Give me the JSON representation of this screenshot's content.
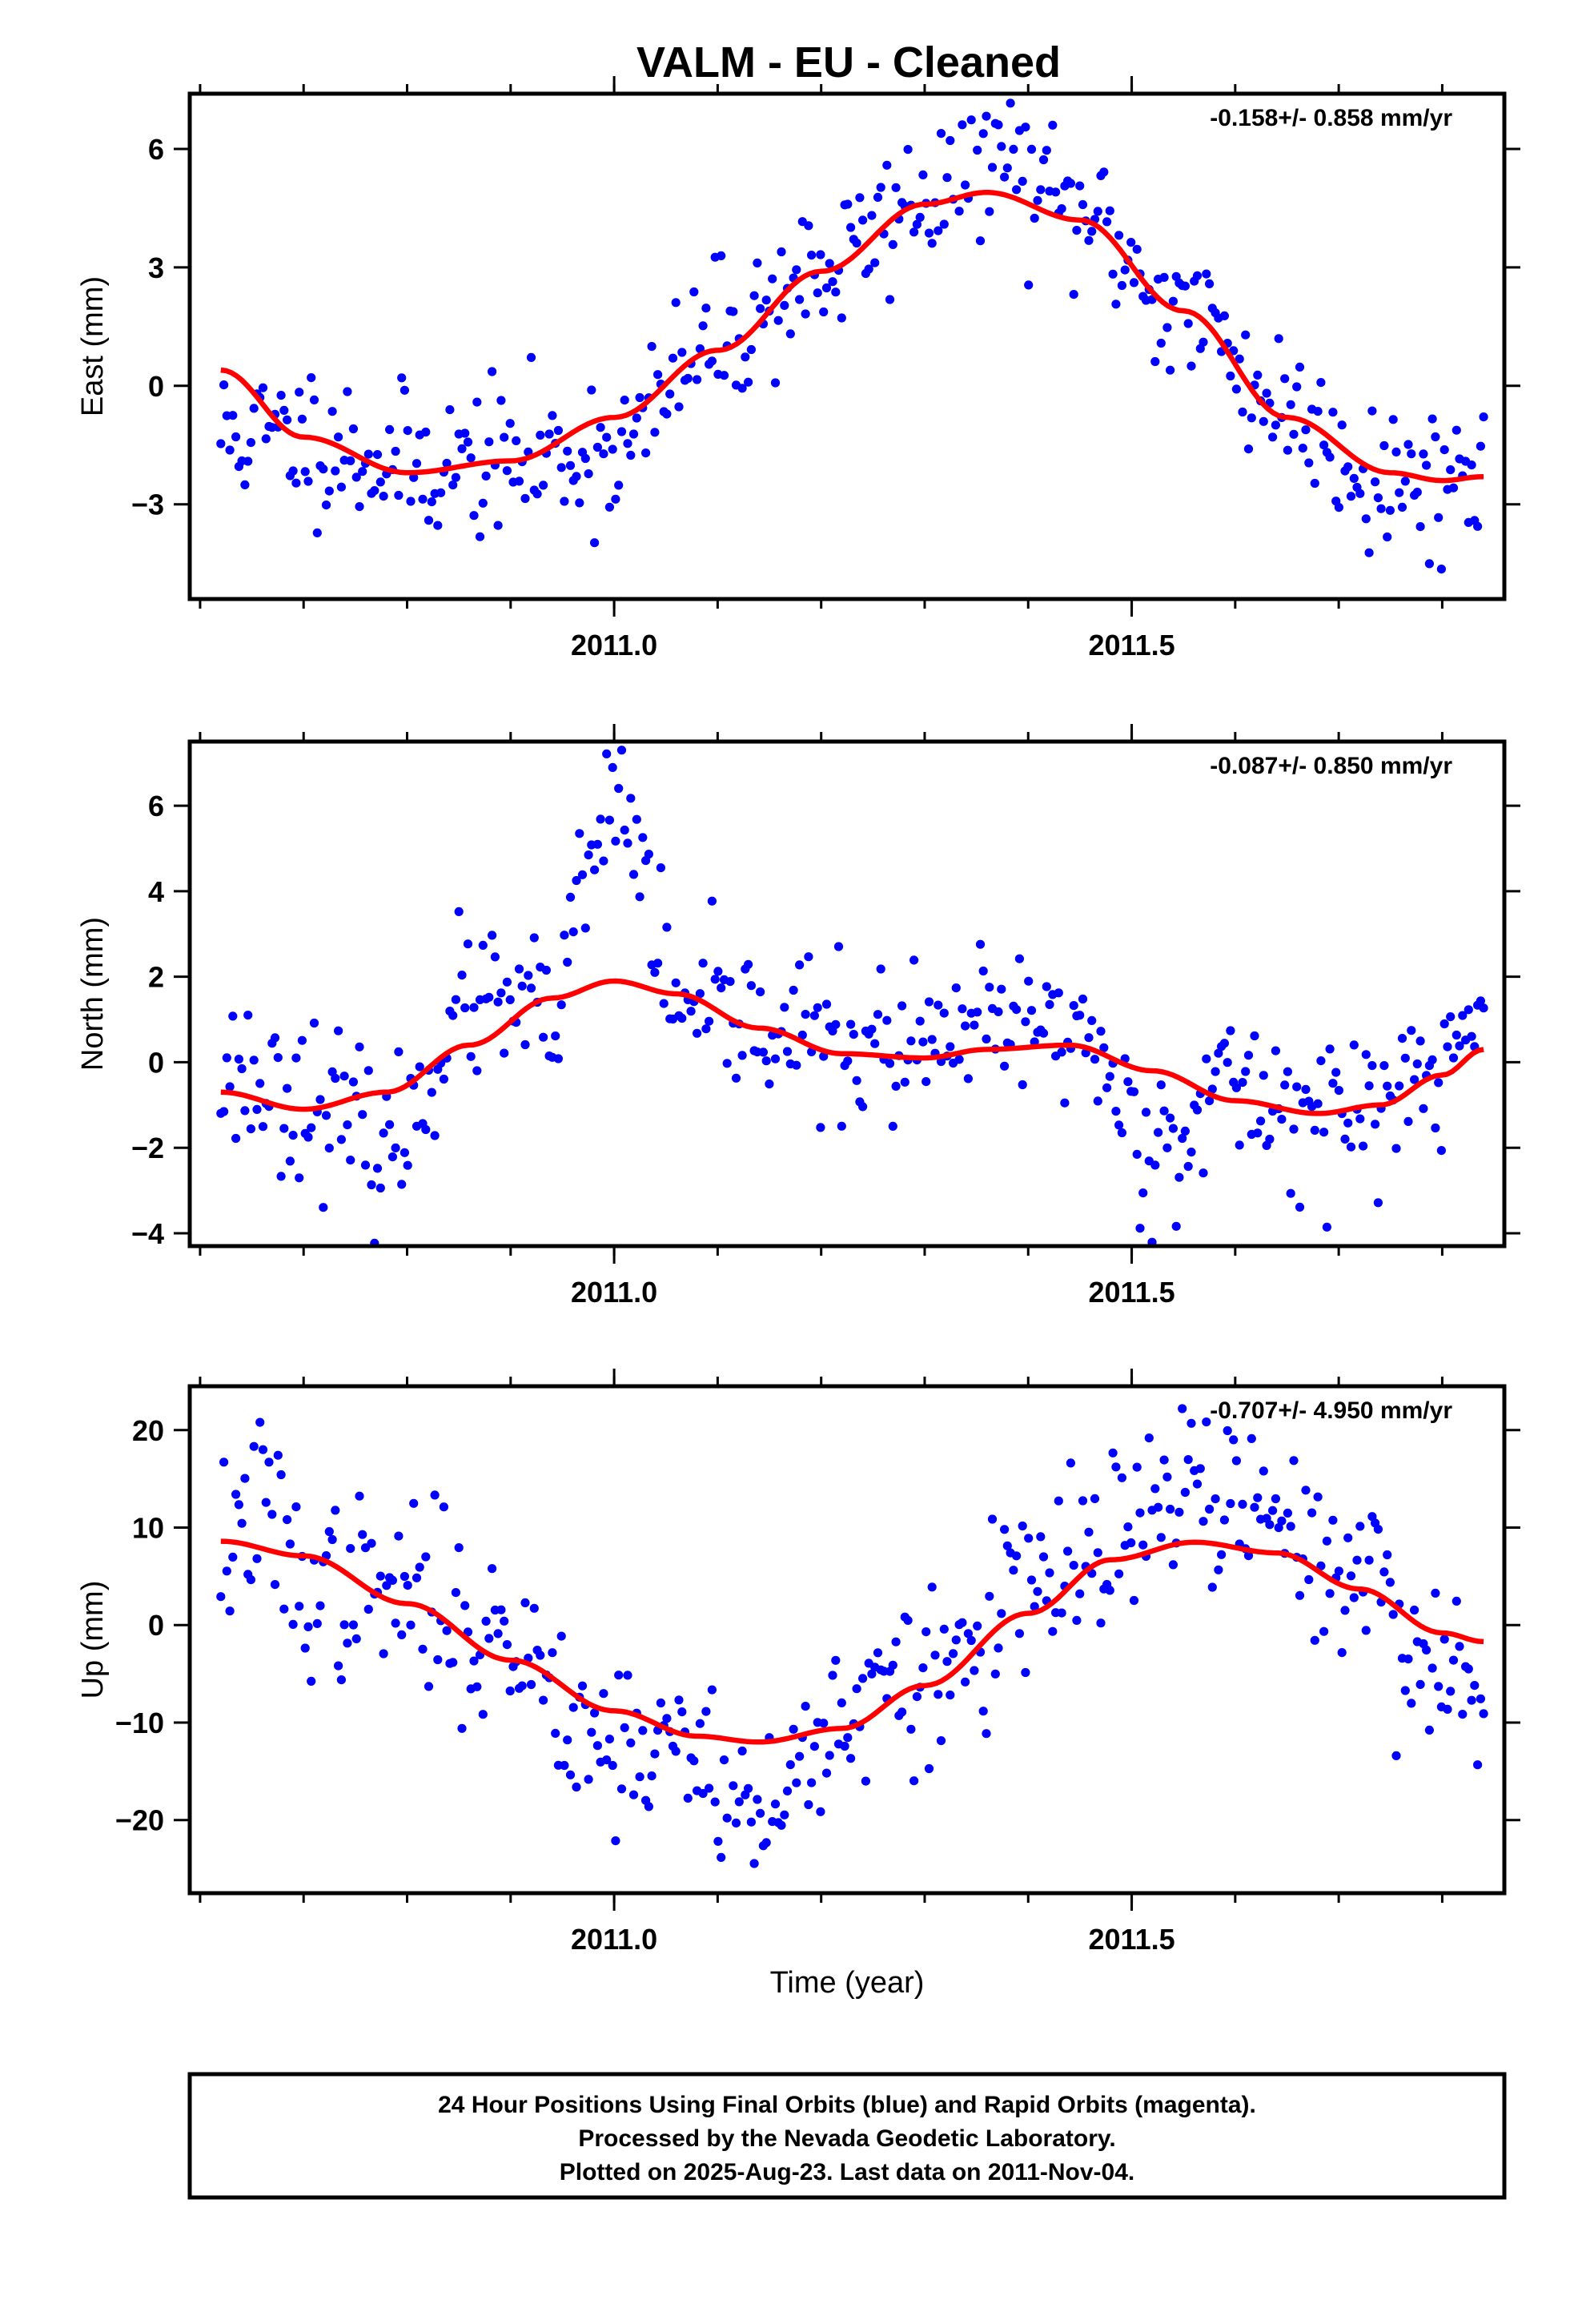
{
  "title": "VALM  - EU - Cleaned",
  "xlabel": "Time (year)",
  "footer": {
    "lines": [
      "24 Hour Positions Using Final Orbits (blue) and Rapid Orbits (magenta).",
      "Processed by the Nevada Geodetic Laboratory.",
      "Plotted on 2025-Aug-23. Last data on 2011-Nov-04."
    ]
  },
  "colors": {
    "points": "#0000ff",
    "fit": "#ff0000",
    "axes": "#000000"
  },
  "chart_data": [
    {
      "type": "scatter",
      "name": "east",
      "ylabel": "East (mm)",
      "rate_text": "-0.158+/- 0.858 mm/yr",
      "xlim": [
        2010.59,
        2011.86
      ],
      "ylim": [
        -5.4,
        7.4
      ],
      "x_ticks": [
        2011.0,
        2011.5
      ],
      "x_tick_labels": [
        "2011.0",
        "2011.5"
      ],
      "y_ticks": [
        -3,
        0,
        3,
        6
      ],
      "y_tick_labels": [
        "−3",
        "0",
        "3",
        "6"
      ],
      "fit_line": {
        "x": [
          2010.62,
          2010.7,
          2010.8,
          2010.9,
          2011.0,
          2011.1,
          2011.2,
          2011.3,
          2011.36,
          2011.45,
          2011.55,
          2011.65,
          2011.75,
          2011.8,
          2011.84
        ],
        "y": [
          0.4,
          -1.3,
          -2.2,
          -1.9,
          -0.8,
          0.9,
          2.9,
          4.6,
          4.9,
          4.2,
          1.9,
          -0.8,
          -2.2,
          -2.4,
          -2.3
        ]
      },
      "sample_trend": {
        "x": [
          2010.62,
          2010.7,
          2010.8,
          2010.9,
          2011.0,
          2011.1,
          2011.2,
          2011.3,
          2011.36,
          2011.45,
          2011.55,
          2011.65,
          2011.75,
          2011.8,
          2011.84
        ],
        "y": [
          -1.2,
          -1.3,
          -2.0,
          -1.9,
          -1.6,
          1.2,
          2.9,
          4.8,
          5.9,
          4.3,
          1.9,
          -0.6,
          -2.4,
          -2.3,
          -2.2
        ]
      },
      "sample_count": 420,
      "noise_mm": 0.95,
      "seed": 11
    },
    {
      "type": "scatter",
      "name": "north",
      "ylabel": "North (mm)",
      "rate_text": "-0.087+/- 0.850 mm/yr",
      "xlim": [
        2010.59,
        2011.86
      ],
      "ylim": [
        -4.3,
        7.5
      ],
      "x_ticks": [
        2011.0,
        2011.5
      ],
      "x_tick_labels": [
        "2011.0",
        "2011.5"
      ],
      "y_ticks": [
        -4,
        -2,
        0,
        2,
        4,
        6
      ],
      "y_tick_labels": [
        "−4",
        "−2",
        "0",
        "2",
        "4",
        "6"
      ],
      "fit_line": {
        "x": [
          2010.62,
          2010.7,
          2010.78,
          2010.86,
          2010.94,
          2011.0,
          2011.06,
          2011.14,
          2011.22,
          2011.3,
          2011.36,
          2011.44,
          2011.52,
          2011.6,
          2011.68,
          2011.74,
          2011.8,
          2011.84
        ],
        "y": [
          -0.7,
          -1.1,
          -0.7,
          0.4,
          1.5,
          1.9,
          1.6,
          0.8,
          0.2,
          0.1,
          0.3,
          0.4,
          -0.2,
          -0.9,
          -1.2,
          -1.0,
          -0.3,
          0.3
        ]
      },
      "sample_trend": {
        "x": [
          2010.62,
          2010.7,
          2010.78,
          2010.86,
          2010.94,
          2010.98,
          2011.0,
          2011.02,
          2011.06,
          2011.14,
          2011.22,
          2011.3,
          2011.36,
          2011.44,
          2011.52,
          2011.6,
          2011.68,
          2011.74,
          2011.8,
          2011.84
        ],
        "y": [
          -0.2,
          -0.8,
          -2.0,
          1.4,
          1.0,
          4.6,
          6.2,
          5.2,
          1.0,
          1.0,
          0.4,
          0.2,
          0.8,
          0.9,
          -1.8,
          -0.6,
          -1.2,
          -1.0,
          -0.2,
          1.2
        ]
      },
      "sample_count": 420,
      "noise_mm": 0.9,
      "seed": 23
    },
    {
      "type": "scatter",
      "name": "up",
      "ylabel": "Up (mm)",
      "rate_text": "-0.707+/- 4.950 mm/yr",
      "xlim": [
        2010.59,
        2011.86
      ],
      "ylim": [
        -27.5,
        24.5
      ],
      "x_ticks": [
        2011.0,
        2011.5
      ],
      "x_tick_labels": [
        "2011.0",
        "2011.5"
      ],
      "y_ticks": [
        -20,
        -10,
        0,
        10,
        20
      ],
      "y_tick_labels": [
        "−20",
        "−10",
        "0",
        "10",
        "20"
      ],
      "fit_line": {
        "x": [
          2010.62,
          2010.7,
          2010.8,
          2010.9,
          2011.0,
          2011.08,
          2011.14,
          2011.22,
          2011.3,
          2011.4,
          2011.48,
          2011.56,
          2011.64,
          2011.72,
          2011.8,
          2011.84
        ],
        "y": [
          8.6,
          7.1,
          2.2,
          -3.6,
          -8.8,
          -11.4,
          -12.0,
          -10.6,
          -6.2,
          1.2,
          6.7,
          8.5,
          7.4,
          3.7,
          -0.8,
          -1.7
        ]
      },
      "sample_trend": {
        "x": [
          2010.62,
          2010.66,
          2010.7,
          2010.8,
          2010.9,
          2011.0,
          2011.08,
          2011.14,
          2011.22,
          2011.3,
          2011.4,
          2011.48,
          2011.56,
          2011.64,
          2011.72,
          2011.8,
          2011.84
        ],
        "y": [
          8.0,
          12.0,
          4.0,
          3.0,
          -2.0,
          -12.0,
          -13.0,
          -20.0,
          -9.0,
          -6.0,
          3.0,
          8.0,
          14.0,
          10.0,
          5.0,
          -5.0,
          -6.0
        ]
      },
      "sample_count": 420,
      "noise_mm": 4.6,
      "seed": 37
    }
  ]
}
